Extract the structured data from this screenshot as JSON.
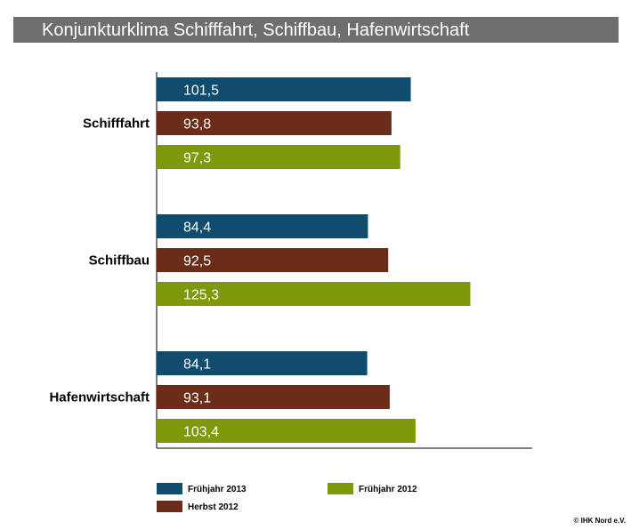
{
  "title": "Konjunkturklima Schifffahrt, Schiffbau, Hafenwirtschaft",
  "copyright": "© IHK Nord e.V.",
  "chart_data": {
    "type": "bar",
    "orientation": "horizontal",
    "title": "Konjunkturklima Schifffahrt, Schiffbau, Hafenwirtschaft",
    "categories": [
      "Schifffahrt",
      "Schiffbau",
      "Hafenwirtschaft"
    ],
    "series": [
      {
        "name": "Frühjahr 2013",
        "color": "#0f4c6e",
        "values": [
          101.5,
          84.4,
          84.1
        ],
        "labels": [
          "101,5",
          "84,4",
          "84,1"
        ]
      },
      {
        "name": "Herbst 2012",
        "color": "#6b2d1a",
        "values": [
          93.8,
          92.5,
          93.1
        ],
        "labels": [
          "93,8",
          "92,5",
          "93,1"
        ]
      },
      {
        "name": "Frühjahr 2012",
        "color": "#7d9a0a",
        "values": [
          97.3,
          125.3,
          103.4
        ],
        "labels": [
          "97,3",
          "125,3",
          "103,4"
        ]
      }
    ],
    "legend": [
      {
        "name": "Frühjahr 2013",
        "color": "#0f4c6e"
      },
      {
        "name": "Frühjahr 2012",
        "color": "#7d9a0a"
      },
      {
        "name": "Herbst 2012",
        "color": "#6b2d1a"
      }
    ],
    "xlim": [
      0,
      150
    ],
    "grid": false,
    "legend_position": "bottom"
  }
}
